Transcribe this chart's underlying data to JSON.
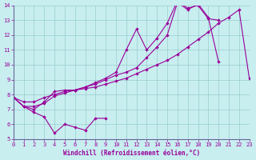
{
  "xlabel": "Windchill (Refroidissement éolien,°C)",
  "ylabel": "",
  "xlim": [
    0,
    23
  ],
  "ylim": [
    5,
    14
  ],
  "xticks": [
    0,
    1,
    2,
    3,
    4,
    5,
    6,
    7,
    8,
    9,
    10,
    11,
    12,
    13,
    14,
    15,
    16,
    17,
    18,
    19,
    20,
    21,
    22,
    23
  ],
  "yticks": [
    5,
    6,
    7,
    8,
    9,
    10,
    11,
    12,
    13,
    14
  ],
  "line_color": "#990099",
  "bg_color": "#c8eef0",
  "grid_color": "#99cccc",
  "series": [
    {
      "x": [
        0,
        1,
        2,
        3,
        4,
        5,
        6,
        7,
        8,
        9
      ],
      "y": [
        7.8,
        7.2,
        6.8,
        6.5,
        5.4,
        6.0,
        5.8,
        5.6,
        6.4,
        6.4
      ]
    },
    {
      "x": [
        0,
        1,
        2,
        3,
        4,
        5,
        6,
        7,
        8,
        9,
        10,
        11,
        12,
        13,
        14,
        15,
        16,
        17,
        18,
        19,
        20,
        21,
        22,
        23
      ],
      "y": [
        7.8,
        7.5,
        7.5,
        7.8,
        8.0,
        8.2,
        8.3,
        8.4,
        8.5,
        8.7,
        8.9,
        9.1,
        9.4,
        9.7,
        10.0,
        10.3,
        10.7,
        11.2,
        11.7,
        12.2,
        12.8,
        13.2,
        13.7,
        9.1
      ]
    },
    {
      "x": [
        0,
        1,
        2,
        3,
        4,
        5,
        6,
        7,
        8,
        9,
        10,
        11,
        12,
        13,
        14,
        15,
        16,
        17,
        18,
        19,
        20
      ],
      "y": [
        7.8,
        7.2,
        7.0,
        7.5,
        8.2,
        8.3,
        8.3,
        8.5,
        8.8,
        9.1,
        9.5,
        11.0,
        12.4,
        11.0,
        11.8,
        12.8,
        14.3,
        13.8,
        14.0,
        13.1,
        13.0
      ]
    },
    {
      "x": [
        0,
        1,
        2,
        3,
        4,
        5,
        6,
        7,
        8,
        9,
        10,
        11,
        12,
        13,
        14,
        15,
        16,
        17,
        18,
        19,
        20
      ],
      "y": [
        7.8,
        7.2,
        7.2,
        7.4,
        7.9,
        8.1,
        8.3,
        8.5,
        8.7,
        9.0,
        9.3,
        9.5,
        9.8,
        10.5,
        11.2,
        12.0,
        14.2,
        13.7,
        14.1,
        13.2,
        10.2
      ]
    }
  ]
}
